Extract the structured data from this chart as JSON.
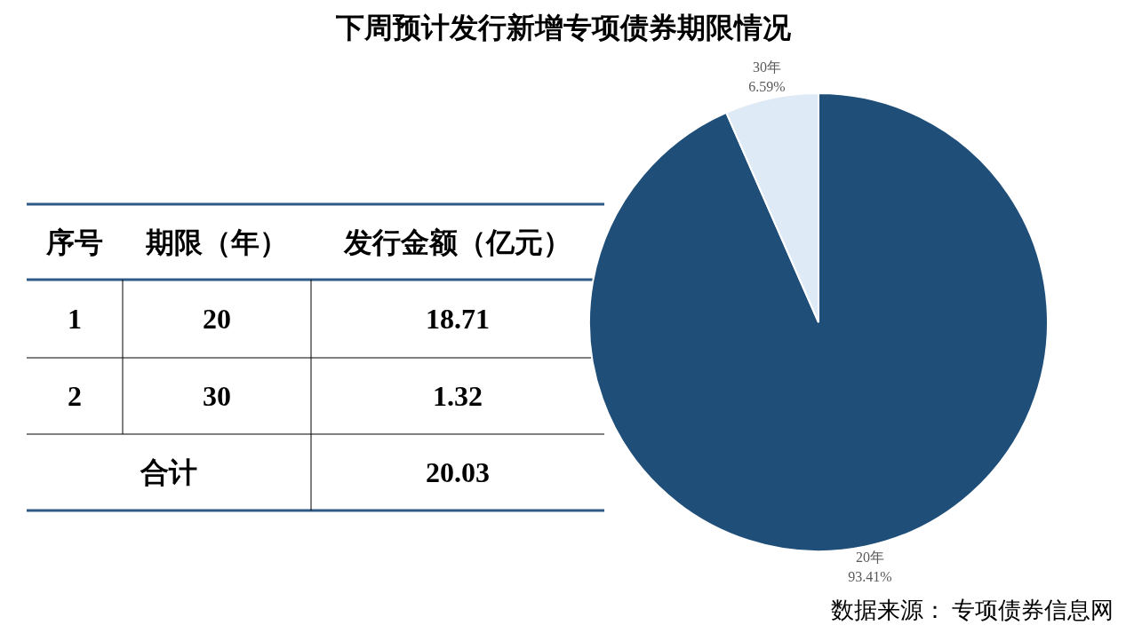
{
  "chart_data": [
    {
      "type": "other",
      "annotations": [
        "序号",
        "期限（年）",
        "发行金额（亿元）",
        "1",
        "20",
        "18.71",
        "2",
        "30",
        "1.32",
        "合计",
        "20.03"
      ]
    },
    {
      "type": "pie",
      "title": "下周预计发行新增专项债券期限情况",
      "categories": [
        "20年",
        "30年"
      ],
      "values": [
        93.41,
        6.59
      ],
      "colors": [
        "#1f4e79",
        "#deebf7"
      ],
      "value_labels": [
        "93.41%",
        "6.59%"
      ],
      "annotations": [
        "数据来源： 专项债券信息网"
      ]
    }
  ]
}
